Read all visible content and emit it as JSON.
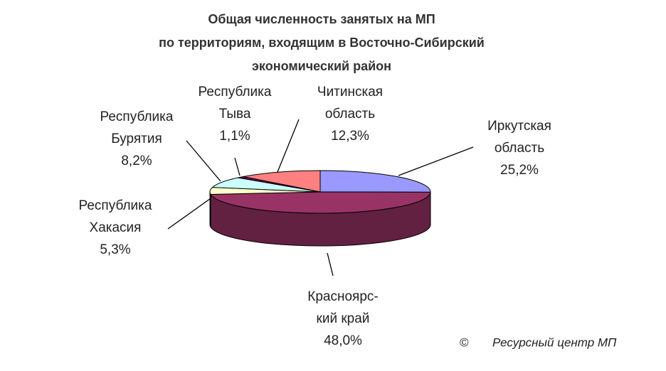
{
  "chart_data": {
    "type": "pie",
    "title": [
      "Общая численность занятых на МП",
      "по территориям, входящим в Восточно-Сибирский",
      "экономический район"
    ],
    "categories": [
      [
        "Иркутская",
        "область"
      ],
      [
        "Красноярс-",
        "кий край"
      ],
      [
        "Республика",
        "Хакасия"
      ],
      [
        "Республика",
        "Бурятия"
      ],
      [
        "Республика",
        "Тыва"
      ],
      [
        "Читинская",
        "область"
      ]
    ],
    "values": [
      25.2,
      48.0,
      5.3,
      8.2,
      1.1,
      12.3
    ],
    "value_labels": [
      "25,2%",
      "48,0%",
      "5,3%",
      "8,2%",
      "1,1%",
      "12,3%"
    ],
    "colors": [
      "#9999ff",
      "#993366",
      "#ffffcc",
      "#ccffff",
      "#660066",
      "#ff8080"
    ],
    "copyright": "©",
    "credit": "Ресурсный центр МП"
  }
}
